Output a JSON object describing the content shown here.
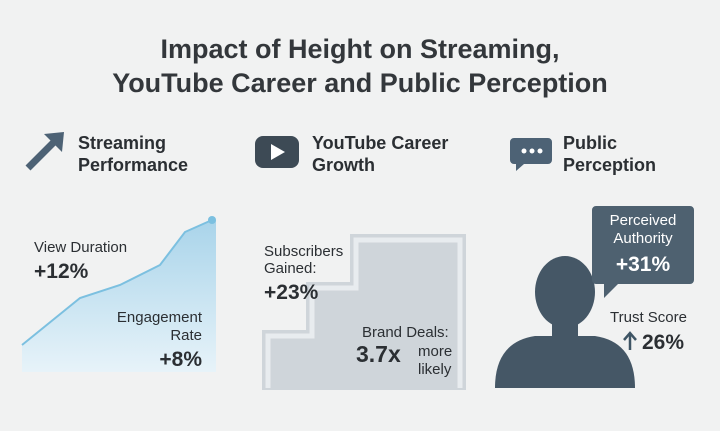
{
  "title": [
    "Impact of Height on Streaming,",
    "YouTube Career and Public Perception"
  ],
  "panels": [
    {
      "heading": [
        "Streaming",
        "Performance"
      ],
      "stats": [
        {
          "label": [
            "View Duration"
          ],
          "value": "+12%"
        },
        {
          "label": [
            "Engagement",
            "Rate"
          ],
          "value": "+8%"
        }
      ]
    },
    {
      "heading": [
        "YouTube Career",
        "Growth"
      ],
      "stats": [
        {
          "label": [
            "Subscribers",
            "Gained:"
          ],
          "value": "+23%"
        },
        {
          "label": [
            "Brand Deals:"
          ],
          "value": "3.7x",
          "note": [
            "more",
            "likely"
          ]
        }
      ]
    },
    {
      "heading": [
        "Public",
        "Perception"
      ],
      "stats": [
        {
          "label": [
            "Perceived",
            "Authority"
          ],
          "value": "+31%"
        },
        {
          "label": [
            "Trust Score"
          ],
          "value": "26%"
        }
      ]
    }
  ]
}
